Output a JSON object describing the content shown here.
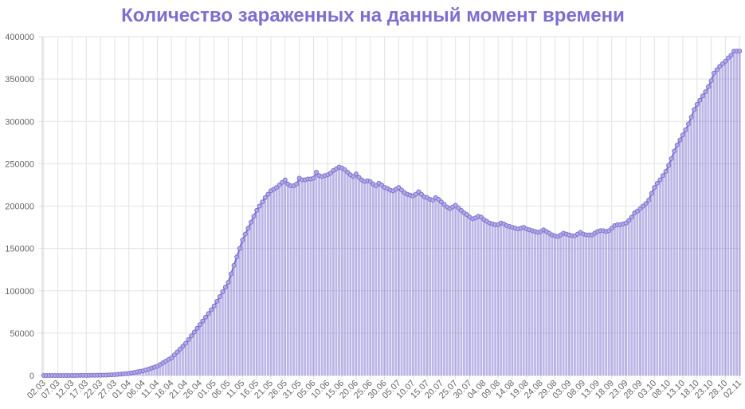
{
  "chart_data": {
    "type": "bar",
    "title": "Количество зараженных на данный момент времени",
    "categories": [
      "02.03",
      null,
      null,
      null,
      null,
      "07.03",
      null,
      null,
      null,
      null,
      "12.03",
      null,
      null,
      null,
      null,
      "17.03",
      null,
      null,
      null,
      null,
      "22.03",
      null,
      null,
      null,
      null,
      "27.03",
      null,
      null,
      null,
      null,
      "01.04",
      null,
      null,
      null,
      null,
      "06.04",
      null,
      null,
      null,
      null,
      "11.04",
      null,
      null,
      null,
      null,
      "16.04",
      null,
      null,
      null,
      null,
      "21.04",
      null,
      null,
      null,
      null,
      "26.04",
      null,
      null,
      null,
      null,
      "01.05",
      null,
      null,
      null,
      null,
      "06.05",
      null,
      null,
      null,
      null,
      "11.05",
      null,
      null,
      null,
      null,
      "16.05",
      null,
      null,
      null,
      null,
      "21.05",
      null,
      null,
      null,
      null,
      "26.05",
      null,
      null,
      null,
      null,
      "31.05",
      null,
      null,
      null,
      null,
      "05.06",
      null,
      null,
      null,
      null,
      "10.06",
      null,
      null,
      null,
      null,
      "15.06",
      null,
      null,
      null,
      null,
      "20.06",
      null,
      null,
      null,
      null,
      "25.06",
      null,
      null,
      null,
      null,
      "30.06",
      null,
      null,
      null,
      null,
      "05.07",
      null,
      null,
      null,
      null,
      "10.07",
      null,
      null,
      null,
      null,
      "15.07",
      null,
      null,
      null,
      null,
      "20.07",
      null,
      null,
      null,
      null,
      "25.07",
      null,
      null,
      null,
      null,
      "30.07",
      null,
      null,
      null,
      null,
      "04.08",
      null,
      null,
      null,
      null,
      "09.08",
      null,
      null,
      null,
      null,
      "14.08",
      null,
      null,
      null,
      null,
      "19.08",
      null,
      null,
      null,
      null,
      "24.08",
      null,
      null,
      null,
      null,
      "29.08",
      null,
      null,
      null,
      null,
      "03.09",
      null,
      null,
      null,
      null,
      "08.09",
      null,
      null,
      null,
      null,
      "13.09",
      null,
      null,
      null,
      null,
      "18.09",
      null,
      null,
      null,
      null,
      "23.09",
      null,
      null,
      null,
      null,
      "28.09",
      null,
      null,
      null,
      null,
      "03.10",
      null,
      null,
      null,
      null,
      "08.10",
      null,
      null,
      null,
      null,
      "13.10",
      null,
      null,
      null,
      null,
      "18.10",
      null,
      null,
      null,
      null,
      "23.10",
      null,
      null,
      null,
      null,
      "28.10",
      null,
      null,
      null,
      null,
      "02.11"
    ],
    "series": [
      {
        "color": "#7b6fcf",
        "values": [
          3,
          3,
          3,
          3,
          4,
          5,
          10,
          13,
          17,
          20,
          28,
          45,
          59,
          63,
          90,
          114,
          147,
          199,
          253,
          306,
          367,
          438,
          495,
          658,
          840,
          1000,
          1300,
          1600,
          1900,
          2200,
          2500,
          3100,
          3700,
          4300,
          4900,
          5500,
          6600,
          7700,
          8800,
          9900,
          11000,
          13000,
          15000,
          17000,
          19000,
          21000,
          24400,
          27800,
          31200,
          34600,
          38000,
          42400,
          46800,
          51200,
          55600,
          60000,
          64400,
          68800,
          73200,
          77600,
          82000,
          87600,
          93200,
          98800,
          104400,
          110000,
          120000,
          130000,
          140000,
          150000,
          160000,
          167000,
          174000,
          181000,
          188000,
          195000,
          200000,
          205000,
          210000,
          214000,
          218000,
          220000,
          222000,
          225000,
          228000,
          231000,
          226000,
          224000,
          224000,
          226000,
          233000,
          231000,
          231000,
          232000,
          232000,
          233000,
          240000,
          236000,
          235000,
          236000,
          237000,
          239000,
          242000,
          244000,
          246000,
          245000,
          243000,
          240000,
          237000,
          235000,
          238000,
          234000,
          231000,
          229000,
          230000,
          229000,
          226000,
          224000,
          227000,
          225000,
          222000,
          221000,
          219000,
          218000,
          220000,
          222000,
          219000,
          216000,
          214000,
          213000,
          212000,
          214000,
          217000,
          214000,
          211000,
          210000,
          208000,
          207000,
          210000,
          208000,
          205000,
          202000,
          199000,
          197000,
          199000,
          201000,
          198000,
          195000,
          192000,
          190000,
          187000,
          185000,
          186000,
          188000,
          187000,
          184000,
          182000,
          180000,
          179000,
          178000,
          178000,
          180000,
          179000,
          177000,
          176000,
          175000,
          174000,
          173000,
          174000,
          175000,
          173000,
          172000,
          171000,
          170000,
          169000,
          170000,
          172000,
          170000,
          168000,
          166000,
          165000,
          164000,
          166000,
          168000,
          167000,
          166000,
          165000,
          165000,
          167000,
          169000,
          167000,
          166000,
          166000,
          166000,
          168000,
          170000,
          171000,
          171000,
          170000,
          171000,
          174000,
          177000,
          178000,
          178000,
          179000,
          180000,
          183000,
          187000,
          192000,
          194000,
          197000,
          200000,
          203000,
          207000,
          215000,
          222000,
          227000,
          231000,
          236000,
          241000,
          248000,
          256000,
          265000,
          272000,
          278000,
          284000,
          290000,
          297000,
          305000,
          314000,
          320000,
          325000,
          330000,
          335000,
          341000,
          348000,
          357000,
          361000,
          365000,
          368000,
          371000,
          375000,
          378000,
          383000,
          383000,
          383000
        ]
      }
    ],
    "ylim": [
      0,
      400000
    ],
    "yticks": [
      0,
      50000,
      100000,
      150000,
      200000,
      250000,
      300000,
      350000,
      400000
    ],
    "grid": true,
    "line": true
  }
}
